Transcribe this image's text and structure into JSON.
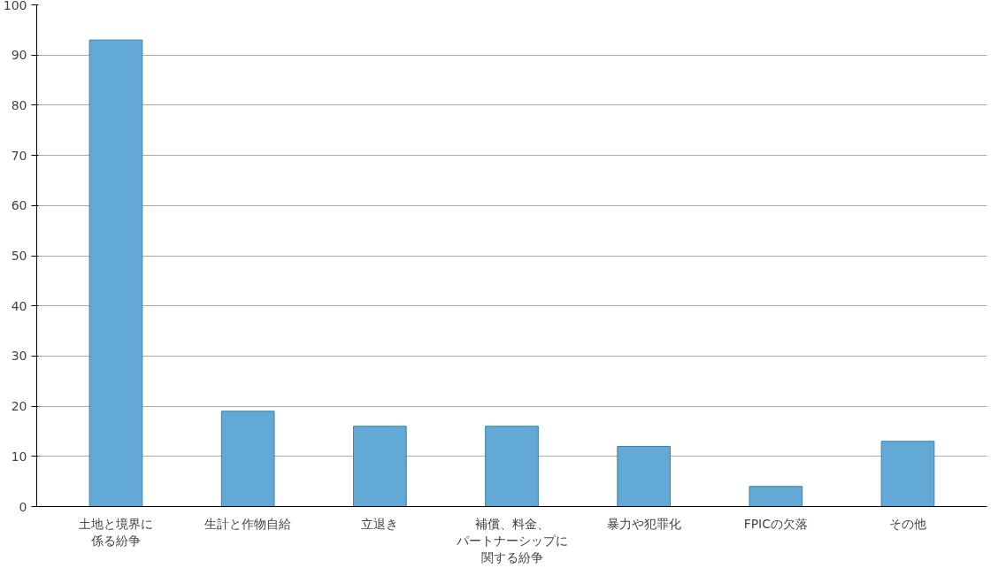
{
  "chart_data": {
    "type": "bar",
    "categories": [
      "土地と境界に係る紛争",
      "生計と作物自給",
      "立退き",
      "補償、料金、パートナーシップに関する紛争",
      "暴力や犯罪化",
      "FPICの欠落",
      "その他"
    ],
    "values": [
      93,
      19,
      16,
      16,
      12,
      4,
      13
    ],
    "color": "#62a9d6",
    "ylim": [
      0,
      100
    ],
    "yticks": [
      0,
      10,
      20,
      30,
      40,
      50,
      60,
      70,
      80,
      90,
      100
    ],
    "grid": "y"
  }
}
